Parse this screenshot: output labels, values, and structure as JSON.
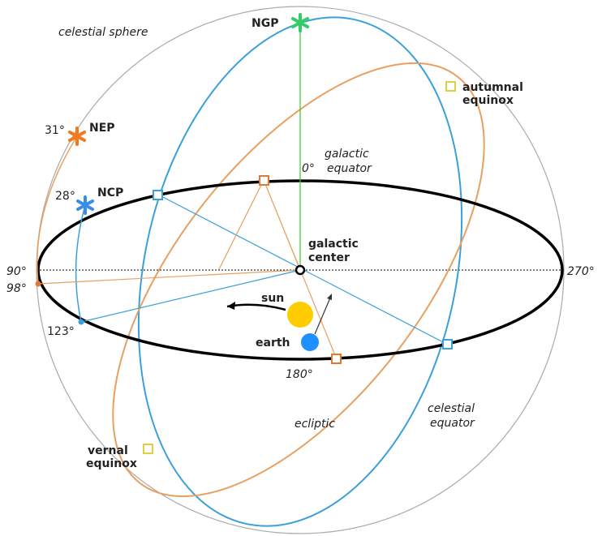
{
  "labels": {
    "celestial_sphere": "celestial sphere",
    "ngp": "NGP",
    "nep": "NEP",
    "ncp": "NCP",
    "nep_deg": "31°",
    "ncp_deg": "28°",
    "autumnal_equinox": [
      "autumnal",
      "equinox"
    ],
    "galactic_equator": [
      "galactic",
      "equator"
    ],
    "zero_deg": "0°",
    "galactic_center": [
      "galactic",
      "center"
    ],
    "deg90": "90°",
    "deg98": "98°",
    "deg123": "123°",
    "deg270": "270°",
    "deg180": "180°",
    "sun": "sun",
    "earth": "earth",
    "vernal_equinox": [
      "vernal",
      "equinox"
    ],
    "ecliptic": "ecliptic",
    "celestial_equator": [
      "celestial",
      "equator"
    ]
  }
}
